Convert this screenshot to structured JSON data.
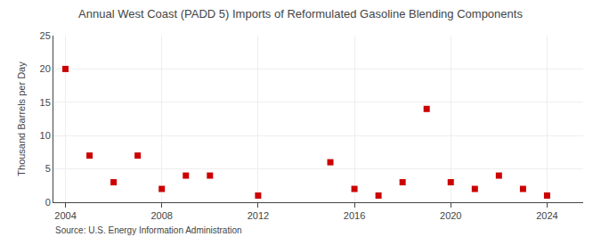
{
  "chart_data": {
    "type": "scatter",
    "title": "Annual West Coast (PADD 5) Imports of Reformulated Gasoline Blending Components",
    "ylabel": "Thousand Barrels per Day",
    "source": "Source: U.S. Energy Information Administration",
    "x": [
      2004,
      2005,
      2006,
      2007,
      2008,
      2009,
      2010,
      2012,
      2015,
      2016,
      2017,
      2018,
      2019,
      2020,
      2021,
      2022,
      2023,
      2024
    ],
    "values": [
      20,
      7,
      3,
      7,
      2,
      4,
      4,
      1,
      6,
      2,
      1,
      3,
      14,
      3,
      2,
      4,
      2,
      1
    ],
    "color": "#cc0000",
    "marker": "square",
    "xlim": [
      2003.5,
      2025.5
    ],
    "xticks": [
      2004,
      2008,
      2012,
      2016,
      2020,
      2024
    ],
    "ylim": [
      0,
      25
    ],
    "yticks": [
      0,
      5,
      10,
      15,
      20,
      25
    ],
    "grid": true
  }
}
